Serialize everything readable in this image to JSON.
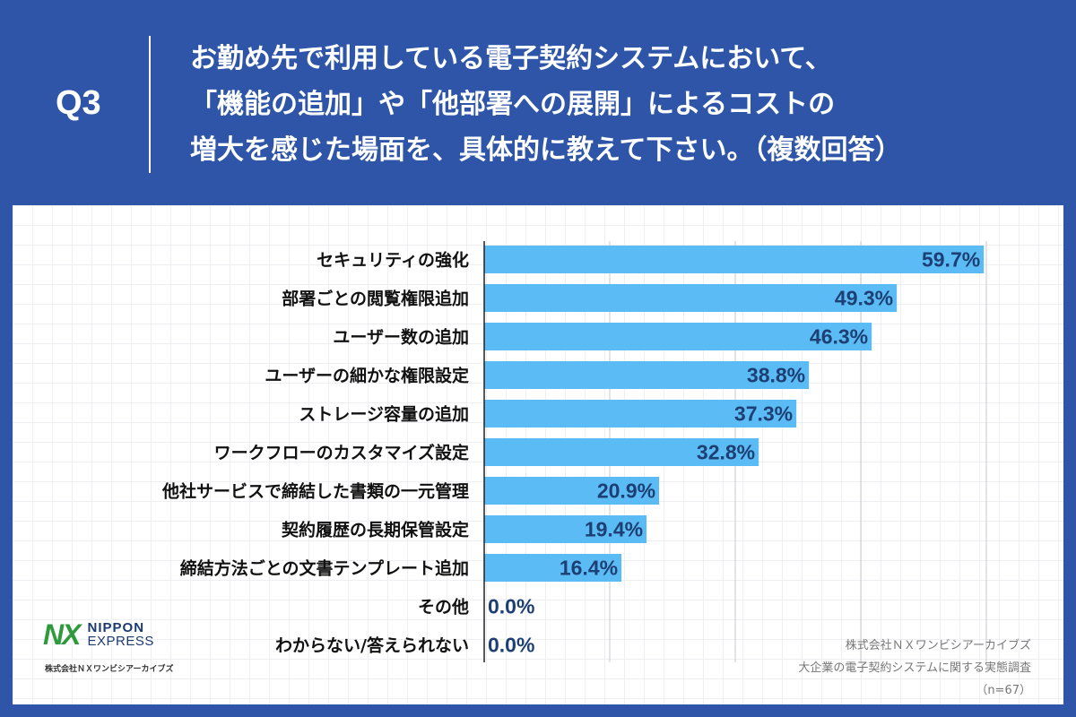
{
  "header": {
    "q_label": "Q3",
    "question_lines": [
      "お勤め先で利用している電子契約システムにおいて、",
      "「機能の追加」や「他部署への展開」によるコストの",
      "増大を感じた場面を、具体的に教えて下さい。（複数回答）"
    ]
  },
  "chart_data": {
    "type": "bar",
    "orientation": "horizontal",
    "title": "お勤め先で利用している電子契約システムにおいて、「機能の追加」や「他部署への展開」によるコストの増大を感じた場面を、具体的に教えて下さい。（複数回答）",
    "categories": [
      "セキュリティの強化",
      "部署ごとの閲覧権限追加",
      "ユーザー数の追加",
      "ユーザーの細かな権限設定",
      "ストレージ容量の追加",
      "ワークフローのカスタマイズ設定",
      "他社サービスで締結した書類の一元管理",
      "契約履歴の長期保管設定",
      "締結方法ごとの文書テンプレート追加",
      "その他",
      "わからない/答えられない"
    ],
    "values": [
      59.7,
      49.3,
      46.3,
      38.8,
      37.3,
      32.8,
      20.9,
      19.4,
      16.4,
      0.0,
      0.0
    ],
    "value_labels": [
      "59.7%",
      "49.3%",
      "46.3%",
      "38.8%",
      "37.3%",
      "32.8%",
      "20.9%",
      "19.4%",
      "16.4%",
      "0.0%",
      "0.0%"
    ],
    "xlim": [
      0,
      60
    ],
    "grid_step": 15,
    "unit": "%",
    "xlabel": "",
    "ylabel": ""
  },
  "colors": {
    "background": "#2e55a8",
    "bar": "#5bbcf5",
    "value_text": "#1d3f73",
    "gridline": "#c8c8c8",
    "axis": "#222222"
  },
  "logo": {
    "mark": "NX",
    "word1": "NIPPON",
    "word2": "EXPRESS",
    "company": "株式会社ＮＸワンビシアーカイブズ"
  },
  "source": {
    "company": "株式会社ＮＸワンビシアーカイブズ",
    "survey": "大企業の電子契約システムに関する実態調査",
    "sample": "（n=67）"
  }
}
